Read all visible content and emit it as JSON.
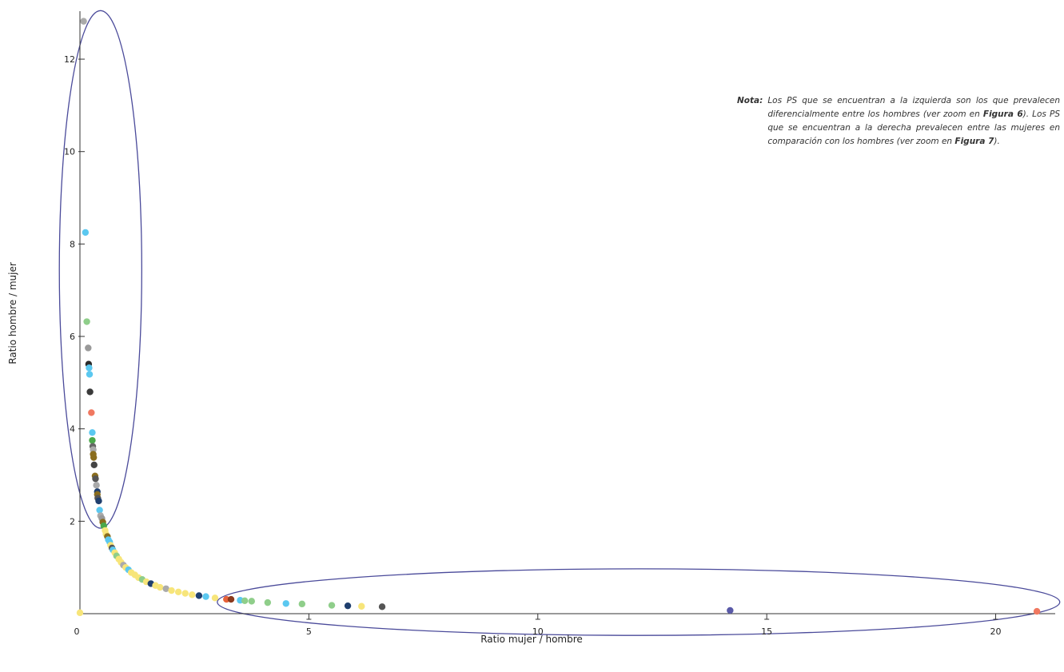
{
  "note": {
    "label": "Nota:",
    "part1": "Los PS que se encuentran a la izquierda son los que prevalecen diferencialmente entre los hombres (ver zoom en ",
    "fig1": "Figura 6",
    "part2": "). Los PS que se encuentran a la derecha prevalecen entre las mujeres en comparación con los hombres (ver zoom en ",
    "fig2": "Figura 7",
    "part3": ")."
  },
  "chart_data": {
    "type": "scatter",
    "title": "",
    "xlabel": "Ratio mujer / hombre",
    "ylabel": "Ratio hombre / mujer",
    "xlim": [
      0,
      21.3
    ],
    "ylim": [
      0,
      12.9
    ],
    "xticks": [
      0,
      5,
      10,
      15,
      20
    ],
    "yticks": [
      2,
      4,
      6,
      8,
      10,
      12
    ],
    "grid": false,
    "ellipse_color": "#4a4a9a",
    "highlight_regions": [
      {
        "name": "hombres",
        "cx": 0.45,
        "cy": 7.45,
        "rx": 0.9,
        "ry": 5.6
      },
      {
        "name": "mujeres",
        "cx": 12.2,
        "cy": 0.25,
        "rx": 9.2,
        "ry": 0.72
      }
    ],
    "points": [
      {
        "x": 0.0,
        "y": 0.02,
        "color": "#f7e57a"
      },
      {
        "x": 0.08,
        "y": 12.82,
        "color": "#aaaaaa"
      },
      {
        "x": 0.12,
        "y": 8.25,
        "color": "#5bc8f0"
      },
      {
        "x": 0.15,
        "y": 6.32,
        "color": "#8fce8a"
      },
      {
        "x": 0.18,
        "y": 5.75,
        "color": "#999999"
      },
      {
        "x": 0.19,
        "y": 5.4,
        "color": "#2b2b2b"
      },
      {
        "x": 0.2,
        "y": 5.32,
        "color": "#5bc8f0"
      },
      {
        "x": 0.21,
        "y": 5.18,
        "color": "#5bc8f0"
      },
      {
        "x": 0.22,
        "y": 4.8,
        "color": "#3a3a3a"
      },
      {
        "x": 0.25,
        "y": 4.35,
        "color": "#f07860"
      },
      {
        "x": 0.27,
        "y": 3.92,
        "color": "#5bc8f0"
      },
      {
        "x": 0.27,
        "y": 3.75,
        "color": "#4aa84a"
      },
      {
        "x": 0.28,
        "y": 3.62,
        "color": "#666666"
      },
      {
        "x": 0.29,
        "y": 3.55,
        "color": "#aaaaaa"
      },
      {
        "x": 0.29,
        "y": 3.45,
        "color": "#8a6d1e"
      },
      {
        "x": 0.3,
        "y": 3.38,
        "color": "#8a6d1e"
      },
      {
        "x": 0.31,
        "y": 3.22,
        "color": "#444444"
      },
      {
        "x": 0.33,
        "y": 2.98,
        "color": "#8a6d1e"
      },
      {
        "x": 0.34,
        "y": 2.92,
        "color": "#555555"
      },
      {
        "x": 0.36,
        "y": 2.78,
        "color": "#aaaaaa"
      },
      {
        "x": 0.38,
        "y": 2.64,
        "color": "#1f3f6e"
      },
      {
        "x": 0.38,
        "y": 2.58,
        "color": "#8a6d1e"
      },
      {
        "x": 0.39,
        "y": 2.5,
        "color": "#555555"
      },
      {
        "x": 0.41,
        "y": 2.44,
        "color": "#1f3f6e"
      },
      {
        "x": 0.43,
        "y": 2.24,
        "color": "#5bc8f0"
      },
      {
        "x": 0.45,
        "y": 2.12,
        "color": "#aaaaaa"
      },
      {
        "x": 0.48,
        "y": 2.06,
        "color": "#999999"
      },
      {
        "x": 0.5,
        "y": 1.98,
        "color": "#8a6d1e"
      },
      {
        "x": 0.52,
        "y": 1.9,
        "color": "#4aa84a"
      },
      {
        "x": 0.55,
        "y": 1.8,
        "color": "#f7e57a"
      },
      {
        "x": 0.57,
        "y": 1.72,
        "color": "#f7e57a"
      },
      {
        "x": 0.6,
        "y": 1.67,
        "color": "#8a6d1e"
      },
      {
        "x": 0.62,
        "y": 1.6,
        "color": "#5bc8f0"
      },
      {
        "x": 0.65,
        "y": 1.55,
        "color": "#5bc8f0"
      },
      {
        "x": 0.67,
        "y": 1.48,
        "color": "#f7e57a"
      },
      {
        "x": 0.7,
        "y": 1.42,
        "color": "#555555"
      },
      {
        "x": 0.72,
        "y": 1.38,
        "color": "#5bc8f0"
      },
      {
        "x": 0.76,
        "y": 1.32,
        "color": "#f7e57a"
      },
      {
        "x": 0.8,
        "y": 1.25,
        "color": "#8fce8a"
      },
      {
        "x": 0.85,
        "y": 1.18,
        "color": "#f7e57a"
      },
      {
        "x": 0.9,
        "y": 1.11,
        "color": "#f7e57a"
      },
      {
        "x": 0.95,
        "y": 1.05,
        "color": "#aaaaaa"
      },
      {
        "x": 1.0,
        "y": 1.0,
        "color": "#f7e57a"
      },
      {
        "x": 1.06,
        "y": 0.95,
        "color": "#5bc8f0"
      },
      {
        "x": 1.12,
        "y": 0.89,
        "color": "#f7e57a"
      },
      {
        "x": 1.2,
        "y": 0.84,
        "color": "#f7e57a"
      },
      {
        "x": 1.28,
        "y": 0.78,
        "color": "#f7e57a"
      },
      {
        "x": 1.36,
        "y": 0.74,
        "color": "#8fce8a"
      },
      {
        "x": 1.45,
        "y": 0.69,
        "color": "#f7e57a"
      },
      {
        "x": 1.55,
        "y": 0.65,
        "color": "#1f3f6e"
      },
      {
        "x": 1.65,
        "y": 0.61,
        "color": "#f7e57a"
      },
      {
        "x": 1.75,
        "y": 0.57,
        "color": "#f7e57a"
      },
      {
        "x": 1.88,
        "y": 0.54,
        "color": "#aaaaaa"
      },
      {
        "x": 2.0,
        "y": 0.5,
        "color": "#f7e57a"
      },
      {
        "x": 2.15,
        "y": 0.47,
        "color": "#f7e57a"
      },
      {
        "x": 2.3,
        "y": 0.44,
        "color": "#f7e57a"
      },
      {
        "x": 2.45,
        "y": 0.41,
        "color": "#f7e57a"
      },
      {
        "x": 2.6,
        "y": 0.39,
        "color": "#1f3f6e"
      },
      {
        "x": 2.75,
        "y": 0.37,
        "color": "#5bc8f0"
      },
      {
        "x": 2.95,
        "y": 0.34,
        "color": "#f7e57a"
      },
      {
        "x": 3.2,
        "y": 0.31,
        "color": "#e8623a"
      },
      {
        "x": 3.3,
        "y": 0.31,
        "color": "#8a3a1e"
      },
      {
        "x": 3.5,
        "y": 0.29,
        "color": "#5bc8f0"
      },
      {
        "x": 3.6,
        "y": 0.28,
        "color": "#8fce8a"
      },
      {
        "x": 3.75,
        "y": 0.27,
        "color": "#8fce8a"
      },
      {
        "x": 4.1,
        "y": 0.24,
        "color": "#8fce8a"
      },
      {
        "x": 4.5,
        "y": 0.22,
        "color": "#5bc8f0"
      },
      {
        "x": 4.85,
        "y": 0.21,
        "color": "#8fce8a"
      },
      {
        "x": 5.5,
        "y": 0.18,
        "color": "#8fce8a"
      },
      {
        "x": 5.85,
        "y": 0.17,
        "color": "#1f3f6e"
      },
      {
        "x": 6.15,
        "y": 0.16,
        "color": "#f7e57a"
      },
      {
        "x": 6.6,
        "y": 0.15,
        "color": "#555555"
      },
      {
        "x": 14.2,
        "y": 0.07,
        "color": "#5a5aa8"
      },
      {
        "x": 20.9,
        "y": 0.05,
        "color": "#f07860"
      }
    ]
  }
}
